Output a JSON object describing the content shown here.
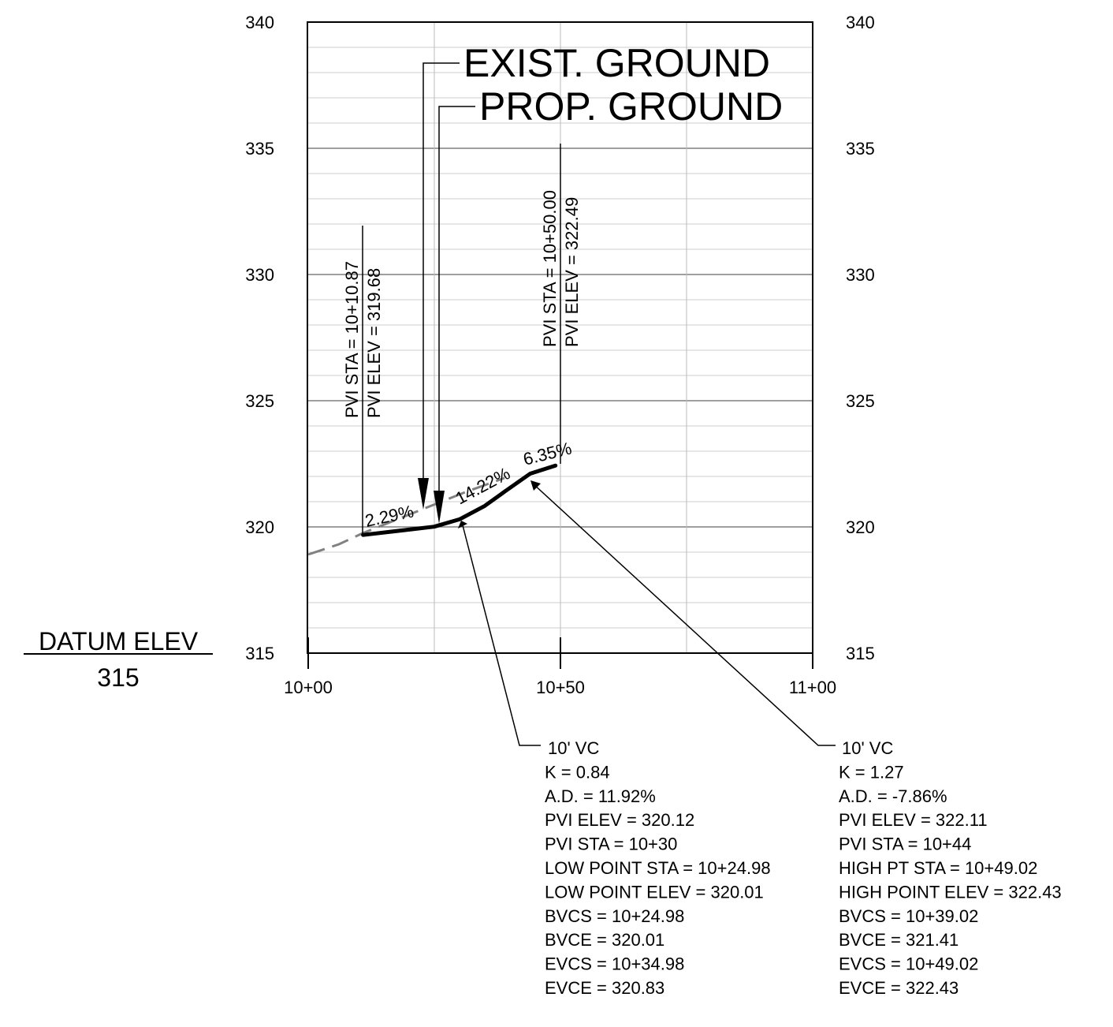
{
  "diagram": {
    "elev_labels": [
      "315",
      "320",
      "325",
      "330",
      "335",
      "340"
    ],
    "station_labels": [
      "10+00",
      "10+50",
      "11+00"
    ],
    "datum": {
      "label": "DATUM ELEV",
      "value": "315"
    },
    "exist_ground_label": "EXIST. GROUND",
    "prop_ground_label": "PROP. GROUND",
    "pvi_left": {
      "sta": "PVI STA = 10+10.87",
      "elev": "PVI ELEV = 319.68"
    },
    "pvi_right": {
      "sta": "PVI STA = 10+50.00",
      "elev": "PVI ELEV = 322.49"
    },
    "grades": [
      "2.29%",
      "14.22%",
      "6.35%"
    ],
    "vc_left": [
      "10' VC",
      "K = 0.84",
      "A.D. = 11.92%",
      "PVI ELEV = 320.12",
      "PVI STA = 10+30",
      "LOW POINT STA = 10+24.98",
      "LOW POINT ELEV = 320.01",
      "BVCS = 10+24.98",
      "BVCE = 320.01",
      "EVCS = 10+34.98",
      "EVCE = 320.83"
    ],
    "vc_right": [
      "10' VC",
      "K = 1.27",
      "A.D. = -7.86%",
      "PVI ELEV = 322.11",
      "PVI STA = 10+44",
      "HIGH PT STA = 10+49.02",
      "HIGH POINT ELEV = 322.43",
      "BVCS = 10+39.02",
      "BVCE = 321.41",
      "EVCS = 10+49.02",
      "EVCE = 322.43"
    ]
  },
  "chart_data": {
    "type": "line",
    "xlabel": "",
    "ylabel": "",
    "x_ticks": [
      "10+00",
      "10+50",
      "11+00"
    ],
    "y_ticks": [
      315,
      320,
      325,
      330,
      335,
      340
    ],
    "ylim": [
      315,
      340
    ],
    "grid": true,
    "series": [
      {
        "points": [
          [
            -2,
            318.9
          ],
          [
            6,
            319.2
          ],
          [
            10.87,
            319.68
          ],
          [
            24.98,
            320.01
          ],
          [
            29.98,
            320.3
          ],
          [
            34.98,
            320.83
          ],
          [
            39.02,
            321.41
          ],
          [
            44.0,
            322.11
          ],
          [
            49.02,
            322.43
          ]
        ]
      }
    ]
  }
}
